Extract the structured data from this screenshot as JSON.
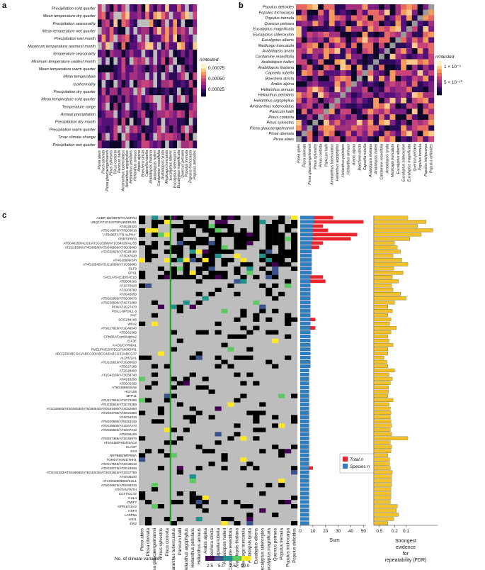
{
  "panels": [
    "a",
    "b",
    "c"
  ],
  "colors": {
    "grey": "#bdbdbd",
    "viridis_line": "#1fa51f",
    "total_n": "#e8242d",
    "species_n": "#2d7fc1",
    "fdr_bar": "#f2c12a"
  },
  "chart_data": [
    {
      "panel": "a",
      "type": "heatmap",
      "legend_title": "n/ntested",
      "legend_ticks": [
        "0.00075",
        "0.00050",
        "0.00025"
      ],
      "rows": [
        "Precipitation cold quarter",
        "Mean temperature dry quarter",
        "Precipitation seasonality",
        "Mean temperature wet quarter",
        "Precipitation wet month",
        "Maximum temperature warmest month",
        "temperature seasonality",
        "Minimum temperature coldest month",
        "Mean temperature warm quarter",
        "Mean temperature",
        "Isothermality",
        "Precipitation dry quarter",
        "Mean temperature cold quarter",
        "Temperature range",
        "Annual precipitation",
        "Precipitation dry month",
        "Precipitation warm quarter",
        "Tmax climate change",
        "Precipitation wet quarter"
      ],
      "columns": [
        "Picea abies",
        "Picea obovata",
        "Picea glaucaengelmannii",
        "Pinus sylvestris",
        "Pinus contorta",
        "Panicum hallii",
        "Amaranthus tuberculatus",
        "Helianthus argophyllus",
        "Helianthus petiolaris",
        "Helianthus annuus",
        "Arabis alpina",
        "Boechera stricta",
        "Capsella rubella",
        "Arabidopsis thaliana",
        "Arabidopsis halleri",
        "Cardamine resedifolia",
        "Arabidopsis lyrata",
        "Medicago truncatula",
        "Eucalyptus albens",
        "Eucalyptus sideroxylon",
        "Eucalyptus magnificata",
        "Quercus petraea",
        "Populus tremula",
        "Populus trichocarpa",
        "Populus deltoides"
      ]
    },
    {
      "panel": "b",
      "type": "heatmap",
      "legend_title": "n/ntested",
      "legend_ticks": [
        "1 × 10⁻⁹",
        "5 × 10⁻¹⁰"
      ],
      "rows": [
        "Populus deltoides",
        "Populus trichocarpa",
        "Populus tremula",
        "Quercus petraea",
        "Eucalyptus magnificata",
        "Eucalyptus sideroxylon",
        "Eucalyptus albens",
        "Medicago truncatula",
        "Arabidopsis lyrata",
        "Cardamine resedifolia",
        "Arabidopsis halleri",
        "Arabidopsis thaliana",
        "Capsella rubella",
        "Boechera stricta",
        "Arabis alpina",
        "Helianthus annuus",
        "Helianthus petiolaris",
        "Helianthus argophyllus",
        "Amaranthus tuberculatus",
        "Panicum hallii",
        "Pinus contorta",
        "Pinus sylvestris",
        "Picea glaucaengelmannii",
        "Picea obovata",
        "Picea abies"
      ],
      "columns": [
        "Picea abies",
        "Picea obovata",
        "Picea glaucaengelmannii",
        "Pinus sylvestris",
        "Pinus contorta",
        "Panicum hallii",
        "Amaranthus tuberculatus",
        "Helianthus argophyllus",
        "Helianthus petiolaris",
        "Helianthus annuus",
        "Arabis alpina",
        "Boechera stricta",
        "Capsella rubella",
        "Arabidopsis thaliana",
        "Arabidopsis halleri",
        "Cardamine resedifolia",
        "Arabidopsis lyrata",
        "Medicago truncatula",
        "Eucalyptus albens",
        "Eucalyptus sideroxylon",
        "Eucalyptus magnificata",
        "Quercus petraea",
        "Populus tremula",
        "Populus trichocarpa",
        "Populus deltoides"
      ]
    },
    {
      "panel": "c",
      "type": "heatmap",
      "legend_title": "No. of climate variables",
      "legend_ticks": [
        "2.5",
        "5.0",
        "7.5",
        "10.0"
      ],
      "genes": [
        "AHBP-1B/OBF5/TGA6/PAN",
        "UBQ7/AT1G11970/RUB3/RUB1",
        "AT4G28420",
        "AT5G16870/AT3G03010",
        "\"ATB BETA\"/\"B ALPHA\"",
        "PRR7/PRR3",
        "AT5G46150/ALIS1/AT1G16360/AT1G54320/ALIS5",
        "AT2G18330/AT4G38580/AT5G66930/AT3G03060",
        "AT2G32820/AT4G28180",
        "AT3G47630",
        "AT4G26660/SPI",
        "AT4G15545/AT1G16360/AT1G56080",
        "ELF9",
        "GPS1",
        "SAE1A/SAE1B/SAE1B",
        "AT5G04200",
        "AT1G70920",
        "AT2G03780",
        "AT3G42050",
        "AT5G02950/AT3G00670",
        "AT5G39500/AT4G71060",
        "PCN/AT1G27470",
        "PDIL1-6/PDIL1-3",
        "PAF",
        "SOS1/NHX8",
        "WAV2",
        "AT3G17920/AT1G48540",
        "AT3G61360",
        "CPN60A/Cpn60alpha2",
        "EIF3E",
        "KAO2/CYP88A1",
        "RVE1/RVE2/AT5G17300/EPR1",
        "ABCG33/ABCG41/ABCG30/ABCG42/ABCG31/ABCG37",
        "ALDH22A1",
        "AT1G15810/AT1G80620",
        "AT3G27180",
        "AT2G28400",
        "AT2G41160/AT3G56740",
        "AT4G18290",
        "AT5G01330",
        "AT5G48650/SAB",
        "HCF106",
        "MTP11",
        "AT1G17840/AT1G73390",
        "AT1G30610/AT1G76280",
        "AT2G36500/AT5G50530/AT5G50640/AT5G63490/AT3G52950",
        "AT4G04790/AT4G21880",
        "AT4G34310",
        "AT5G00690/AT5G53240",
        "AT5G38600/AT1G67270",
        "AT5G55860/AT1G07210",
        "AT5G56100",
        "AT5G67385/AT3G49970",
        "AT5A01B/RHD4/SAC8",
        "CLASP",
        "EX3",
        "NRPB8B/NRPB8A",
        "TOM37/TOM1/THH1",
        "AT2G17540/AT4G35510",
        "AT2G26770/AT3G43930",
        "AT2G42320/AT5G06930/AT5G43230/AT3G01810/AT3G57780",
        "AT3G06530",
        "AT4G04260/EBS/SHL1",
        "AT5G06570/AT5G68310",
        "ATNTH/ATNTH",
        "CCT7/CCT2",
        "CUL4",
        "DWF7",
        "GPRI1/GLK2",
        "HSF4",
        "LARP6a",
        "VAD1",
        "ZW2"
      ],
      "columns": [
        "Picea abies",
        "Picea obovata",
        "Picea glaucaengelmannii",
        "Pinus sylvestris",
        "Pinus contorta",
        "Amaranthus tuberculatus",
        "Panicum hallii",
        "Helianthus argophyllus",
        "Helianthus petiolaris",
        "Helianthus annuus",
        "Arabis alpina",
        "Boechera stricta",
        "Capsella rubella",
        "Arabidopsis halleri",
        "Cardamine resedifolia",
        "Arabidopsis thaliana",
        "Medicago truncatula",
        "Arabidopsis lyrata",
        "Eucalyptus albens",
        "Eucalyptus sideroxylon",
        "Eucalyptus magnificata",
        "Quercus petraea",
        "Populus tremula",
        "Populus trichocarpa",
        "Populus deltoides"
      ],
      "sum_axis": {
        "label": "Sum",
        "ticks": [
          "0",
          "10",
          "20",
          "30",
          "40",
          "50"
        ],
        "xlim": [
          0,
          52
        ]
      },
      "legend_entries": [
        "Total n",
        "Species n"
      ],
      "species_n": [
        11,
        11,
        10,
        10,
        10,
        10,
        9,
        9,
        9,
        9,
        9,
        9,
        9,
        9,
        8,
        8,
        8,
        8,
        8,
        8,
        8,
        8,
        8,
        8,
        8,
        8,
        8,
        8,
        8,
        8,
        8,
        8,
        8,
        8,
        8,
        8,
        7,
        7,
        7,
        7,
        7,
        7,
        7,
        7,
        7,
        7,
        7,
        7,
        7,
        7,
        7,
        7,
        7,
        7,
        7,
        7,
        7,
        7,
        7,
        7,
        7,
        7,
        7,
        7,
        7,
        7,
        7,
        7,
        7,
        7,
        7,
        7,
        7
      ],
      "total_n": [
        26,
        50,
        18,
        22,
        45,
        40,
        18,
        15,
        9,
        9,
        8,
        9,
        8,
        8,
        18,
        20,
        8,
        8,
        8,
        8,
        8,
        8,
        8,
        8,
        12,
        8,
        12,
        8,
        8,
        8,
        8,
        8,
        8,
        8,
        8,
        8,
        7,
        7,
        7,
        7,
        7,
        7,
        7,
        7,
        7,
        7,
        7,
        7,
        7,
        7,
        7,
        7,
        7,
        7,
        7,
        7,
        7,
        7,
        7,
        10,
        7,
        7,
        7,
        7,
        7,
        7,
        7,
        7,
        7,
        7,
        7,
        7,
        7
      ],
      "fdr_axis": {
        "label_line1": "Strongest",
        "label_line2": "evidence",
        "label_line3": "for",
        "label_line4": "repeatability (FDR)",
        "ticks": [
          "0.5",
          "0.2",
          "0.1"
        ]
      },
      "fdr_values": [
        0.09,
        0.03,
        0.05,
        0.02,
        0.04,
        0.08,
        0.2,
        0.17,
        0.14,
        0.22,
        0.13,
        0.09,
        0.21,
        0.12,
        0.23,
        0.16,
        0.24,
        0.22,
        0.14,
        0.1,
        0.2,
        0.3,
        0.23,
        0.3,
        0.25,
        0.27,
        0.18,
        0.25,
        0.3,
        0.28,
        0.22,
        0.3,
        0.3,
        0.38,
        0.32,
        0.3,
        0.2,
        0.28,
        0.23,
        0.26,
        0.29,
        0.29,
        0.3,
        0.22,
        0.28,
        0.26,
        0.25,
        0.26,
        0.25,
        0.24,
        0.26,
        0.24,
        0.09,
        0.26,
        0.24,
        0.25,
        0.3,
        0.27,
        0.27,
        0.26,
        0.23,
        0.24,
        0.24,
        0.24,
        0.25,
        0.25,
        0.25,
        0.26,
        0.17,
        0.18,
        0.16,
        0.21,
        0.3
      ]
    }
  ]
}
